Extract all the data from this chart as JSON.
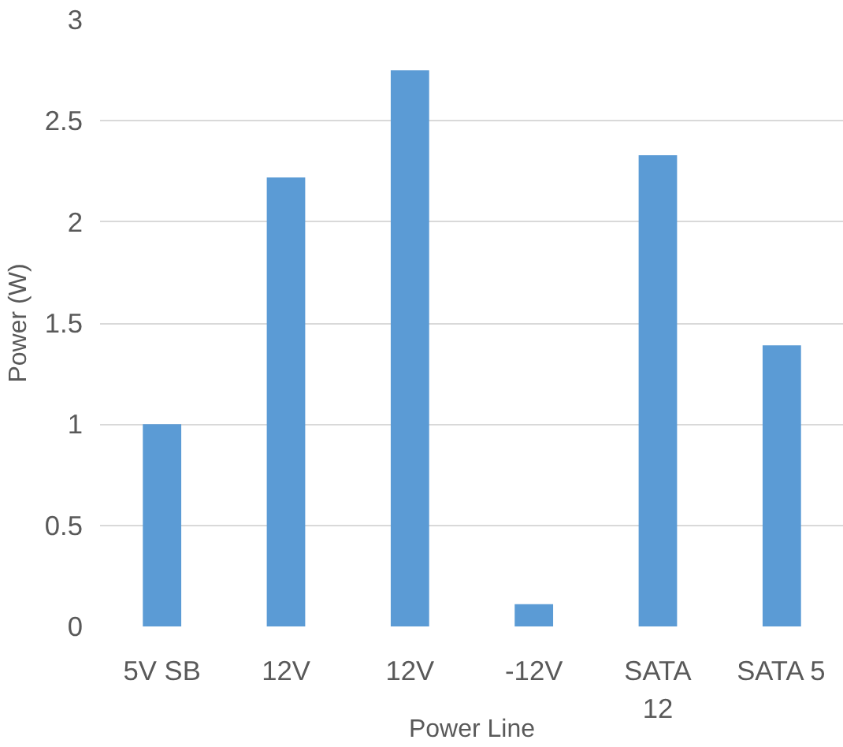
{
  "chart_data": {
    "type": "bar",
    "xlabel": "Power Line",
    "ylabel": "Power (W)",
    "categories": [
      "5V SB",
      "12V",
      "12V",
      "-12V",
      "SATA 12",
      "SATA 5"
    ],
    "values": [
      1.0,
      2.22,
      2.75,
      0.11,
      2.33,
      1.39
    ],
    "color": "#5b9bd5",
    "ylim": [
      0,
      3
    ],
    "yticks": [
      0,
      0.5,
      1,
      1.5,
      2,
      2.5,
      3
    ],
    "grid": "y"
  }
}
